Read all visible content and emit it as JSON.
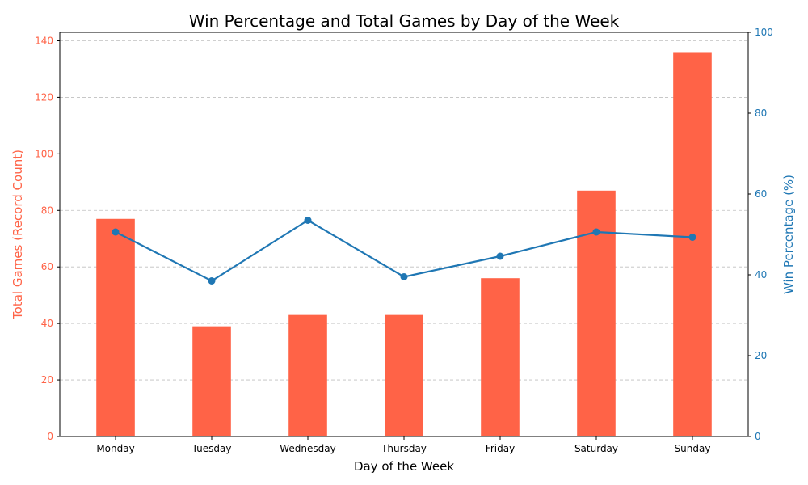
{
  "chart_data": {
    "type": "bar+line",
    "title": "Win Percentage and Total Games by Day of the Week",
    "xlabel": "Day of the Week",
    "categories": [
      "Monday",
      "Tuesday",
      "Wednesday",
      "Thursday",
      "Friday",
      "Saturday",
      "Sunday"
    ],
    "left_axis": {
      "label": "Total Games (Record Count)",
      "ylim": [
        0,
        143
      ],
      "ticks": [
        0,
        20,
        40,
        60,
        80,
        100,
        120,
        140
      ],
      "color": "#ff6347"
    },
    "right_axis": {
      "label": "Win Percentage (%)",
      "ylim": [
        0,
        100
      ],
      "ticks": [
        0,
        20,
        40,
        60,
        80,
        100
      ],
      "color": "#1f77b4"
    },
    "series": [
      {
        "kind": "bar",
        "axis": "left",
        "color": "#ff6347",
        "values": [
          77,
          39,
          43,
          43,
          56,
          87,
          136
        ]
      },
      {
        "kind": "line",
        "axis": "right",
        "color": "#1f77b4",
        "marker": "circle",
        "values": [
          50.6,
          38.5,
          53.5,
          39.5,
          44.6,
          50.6,
          49.3
        ]
      }
    ],
    "grid": "horizontal-dashed",
    "legend": "none"
  }
}
